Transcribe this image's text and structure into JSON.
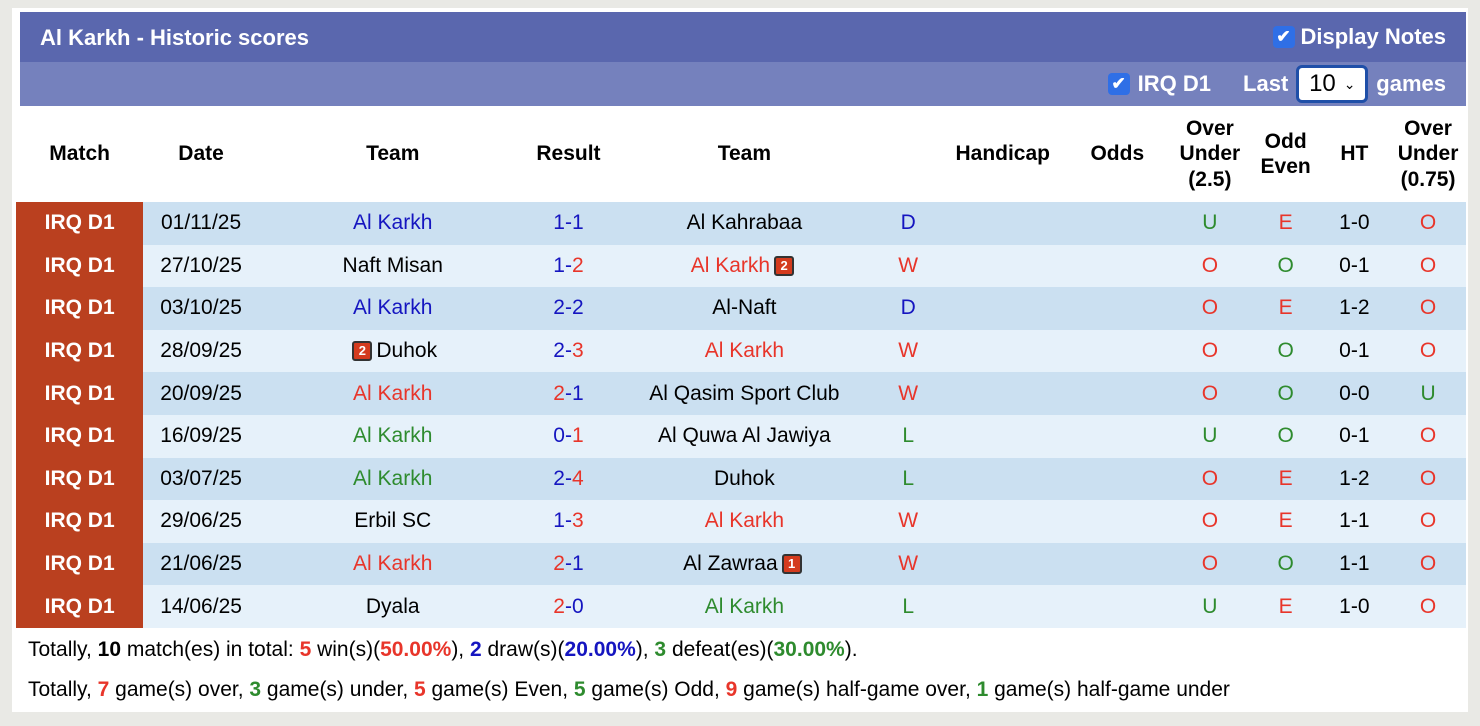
{
  "header": {
    "title": "Al Karkh - Historic scores",
    "display_notes": "Display Notes",
    "display_notes_checked": true
  },
  "filter": {
    "league": "IRQ D1",
    "league_checked": true,
    "last": "Last",
    "games_value": "10",
    "games": "games"
  },
  "columns": [
    "Match",
    "Date",
    "Team",
    "Result",
    "Team",
    "",
    "Handicap",
    "Odds",
    "Over Under (2.5)",
    "Odd Even",
    "HT",
    "Over Under (0.75)"
  ],
  "colors": {
    "red": "#e8352a",
    "blue": "#1515c0",
    "green": "#2e8b2e",
    "black": "#000000"
  },
  "rows": [
    {
      "match": "IRQ D1",
      "date": "01/11/25",
      "home": "Al Karkh",
      "home_color": "#1515c0",
      "hs": "1",
      "hs_color": "#1515c0",
      "as": "1",
      "as_color": "#1515c0",
      "away": "Al Kahrabaa",
      "away_color": "#000000",
      "res": "D",
      "res_color": "#1515c0",
      "ou": "U",
      "ou_color": "#2e8b2e",
      "oe": "E",
      "oe_color": "#e8352a",
      "ht": "1-0",
      "ou2": "O",
      "ou2_color": "#e8352a"
    },
    {
      "match": "IRQ D1",
      "date": "27/10/25",
      "home": "Naft Misan",
      "home_color": "#000000",
      "hs": "1",
      "hs_color": "#1515c0",
      "as": "2",
      "as_color": "#e8352a",
      "away": "Al Karkh",
      "away_color": "#e8352a",
      "away_card": "2",
      "res": "W",
      "res_color": "#e8352a",
      "ou": "O",
      "ou_color": "#e8352a",
      "oe": "O",
      "oe_color": "#2e8b2e",
      "ht": "0-1",
      "ou2": "O",
      "ou2_color": "#e8352a"
    },
    {
      "match": "IRQ D1",
      "date": "03/10/25",
      "home": "Al Karkh",
      "home_color": "#1515c0",
      "hs": "2",
      "hs_color": "#1515c0",
      "as": "2",
      "as_color": "#1515c0",
      "away": "Al-Naft",
      "away_color": "#000000",
      "res": "D",
      "res_color": "#1515c0",
      "ou": "O",
      "ou_color": "#e8352a",
      "oe": "E",
      "oe_color": "#e8352a",
      "ht": "1-2",
      "ou2": "O",
      "ou2_color": "#e8352a"
    },
    {
      "match": "IRQ D1",
      "date": "28/09/25",
      "home": "Duhok",
      "home_color": "#000000",
      "home_card": "2",
      "hs": "2",
      "hs_color": "#1515c0",
      "as": "3",
      "as_color": "#e8352a",
      "away": "Al Karkh",
      "away_color": "#e8352a",
      "res": "W",
      "res_color": "#e8352a",
      "ou": "O",
      "ou_color": "#e8352a",
      "oe": "O",
      "oe_color": "#2e8b2e",
      "ht": "0-1",
      "ou2": "O",
      "ou2_color": "#e8352a"
    },
    {
      "match": "IRQ D1",
      "date": "20/09/25",
      "home": "Al Karkh",
      "home_color": "#e8352a",
      "hs": "2",
      "hs_color": "#e8352a",
      "as": "1",
      "as_color": "#1515c0",
      "away": "Al Qasim Sport Club",
      "away_color": "#000000",
      "res": "W",
      "res_color": "#e8352a",
      "ou": "O",
      "ou_color": "#e8352a",
      "oe": "O",
      "oe_color": "#2e8b2e",
      "ht": "0-0",
      "ou2": "U",
      "ou2_color": "#2e8b2e"
    },
    {
      "match": "IRQ D1",
      "date": "16/09/25",
      "home": "Al Karkh",
      "home_color": "#2e8b2e",
      "hs": "0",
      "hs_color": "#1515c0",
      "as": "1",
      "as_color": "#e8352a",
      "away": "Al Quwa Al Jawiya",
      "away_color": "#000000",
      "res": "L",
      "res_color": "#2e8b2e",
      "ou": "U",
      "ou_color": "#2e8b2e",
      "oe": "O",
      "oe_color": "#2e8b2e",
      "ht": "0-1",
      "ou2": "O",
      "ou2_color": "#e8352a"
    },
    {
      "match": "IRQ D1",
      "date": "03/07/25",
      "home": "Al Karkh",
      "home_color": "#2e8b2e",
      "hs": "2",
      "hs_color": "#1515c0",
      "as": "4",
      "as_color": "#e8352a",
      "away": "Duhok",
      "away_color": "#000000",
      "res": "L",
      "res_color": "#2e8b2e",
      "ou": "O",
      "ou_color": "#e8352a",
      "oe": "E",
      "oe_color": "#e8352a",
      "ht": "1-2",
      "ou2": "O",
      "ou2_color": "#e8352a"
    },
    {
      "match": "IRQ D1",
      "date": "29/06/25",
      "home": "Erbil SC",
      "home_color": "#000000",
      "hs": "1",
      "hs_color": "#1515c0",
      "as": "3",
      "as_color": "#e8352a",
      "away": "Al Karkh",
      "away_color": "#e8352a",
      "res": "W",
      "res_color": "#e8352a",
      "ou": "O",
      "ou_color": "#e8352a",
      "oe": "E",
      "oe_color": "#e8352a",
      "ht": "1-1",
      "ou2": "O",
      "ou2_color": "#e8352a"
    },
    {
      "match": "IRQ D1",
      "date": "21/06/25",
      "home": "Al Karkh",
      "home_color": "#e8352a",
      "hs": "2",
      "hs_color": "#e8352a",
      "as": "1",
      "as_color": "#1515c0",
      "away": "Al Zawraa",
      "away_color": "#000000",
      "away_card": "1",
      "res": "W",
      "res_color": "#e8352a",
      "ou": "O",
      "ou_color": "#e8352a",
      "oe": "O",
      "oe_color": "#2e8b2e",
      "ht": "1-1",
      "ou2": "O",
      "ou2_color": "#e8352a"
    },
    {
      "match": "IRQ D1",
      "date": "14/06/25",
      "home": "Dyala",
      "home_color": "#000000",
      "hs": "2",
      "hs_color": "#e8352a",
      "as": "0",
      "as_color": "#1515c0",
      "away": "Al Karkh",
      "away_color": "#2e8b2e",
      "res": "L",
      "res_color": "#2e8b2e",
      "ou": "U",
      "ou_color": "#2e8b2e",
      "oe": "E",
      "oe_color": "#e8352a",
      "ht": "1-0",
      "ou2": "O",
      "ou2_color": "#e8352a"
    }
  ],
  "summary": {
    "line1": [
      [
        "Totally, ",
        ""
      ],
      [
        "10",
        "#000000b"
      ],
      [
        " match(es) in total: ",
        ""
      ],
      [
        "5",
        "#e8352a"
      ],
      [
        " win(s)(",
        ""
      ],
      [
        "50.00%",
        "#e8352a"
      ],
      [
        "), ",
        ""
      ],
      [
        "2",
        "#1515c0"
      ],
      [
        " draw(s)(",
        ""
      ],
      [
        "20.00%",
        "#1515c0"
      ],
      [
        "), ",
        ""
      ],
      [
        "3",
        "#2e8b2e"
      ],
      [
        " defeat(es)(",
        ""
      ],
      [
        "30.00%",
        "#2e8b2e"
      ],
      [
        ").",
        ""
      ]
    ],
    "line2": [
      [
        "Totally, ",
        ""
      ],
      [
        "7",
        "#e8352a"
      ],
      [
        " game(s) over, ",
        ""
      ],
      [
        "3",
        "#2e8b2e"
      ],
      [
        " game(s) under, ",
        ""
      ],
      [
        "5",
        "#e8352a"
      ],
      [
        " game(s) Even, ",
        ""
      ],
      [
        "5",
        "#2e8b2e"
      ],
      [
        " game(s) Odd, ",
        ""
      ],
      [
        "9",
        "#e8352a"
      ],
      [
        " game(s) half-game over, ",
        ""
      ],
      [
        "1",
        "#2e8b2e"
      ],
      [
        " game(s) half-game under",
        ""
      ]
    ]
  }
}
